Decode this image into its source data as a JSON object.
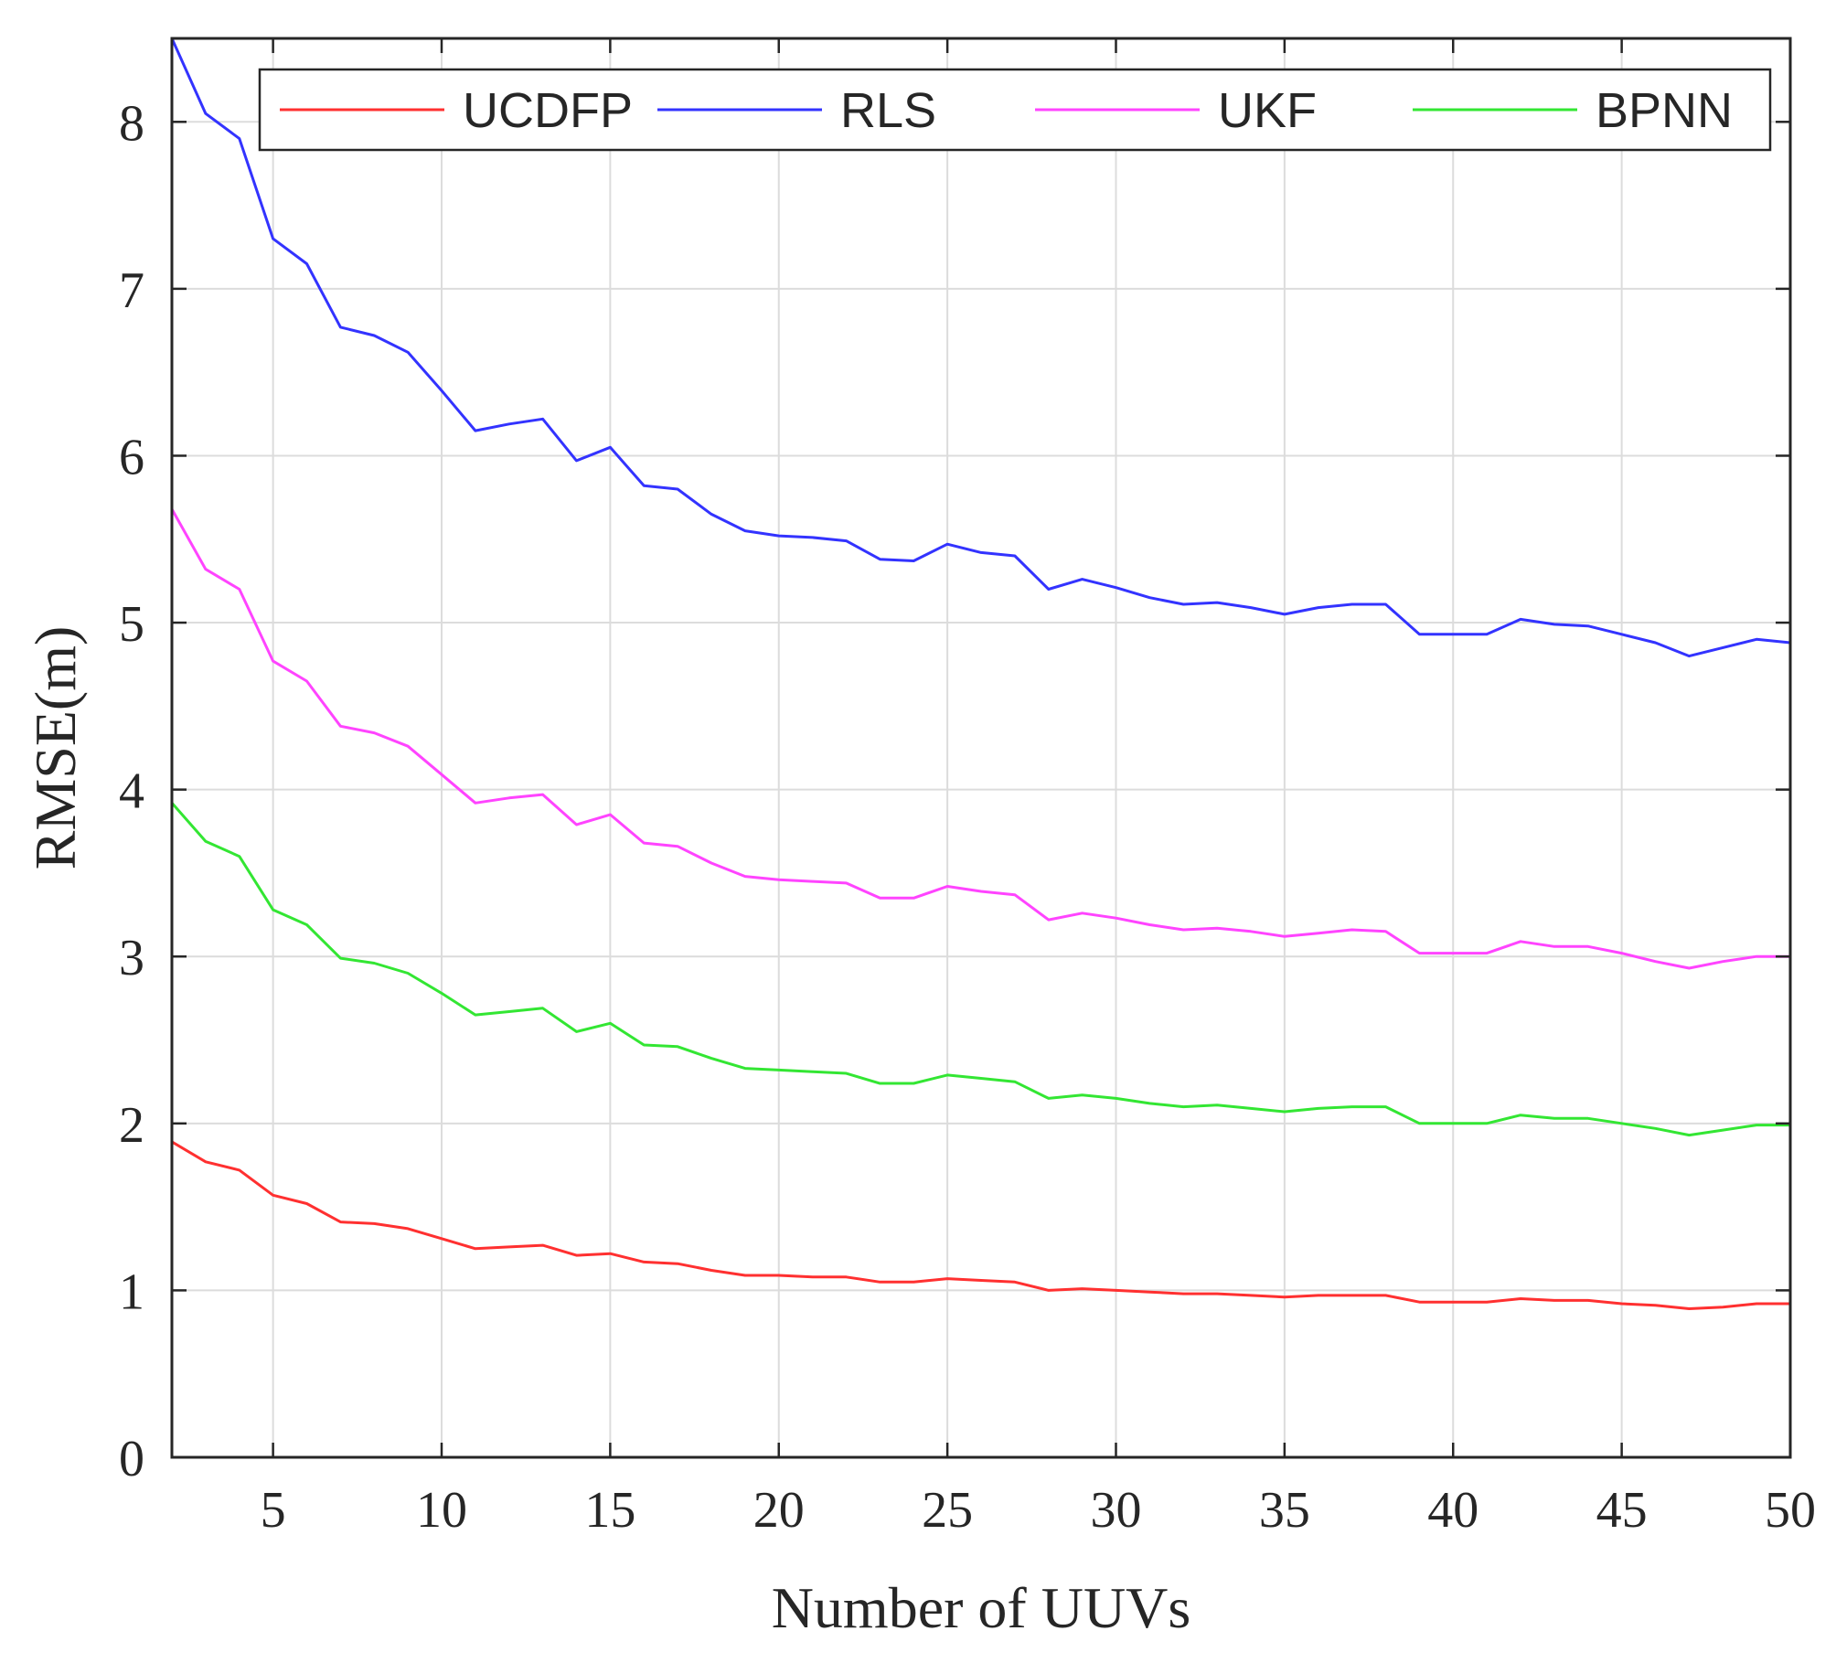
{
  "chart_data": {
    "type": "line",
    "title": "",
    "xlabel": "Number of UUVs",
    "ylabel": "RMSE(m)",
    "xlim": [
      2,
      50
    ],
    "ylim": [
      0,
      8.5
    ],
    "xticks": [
      5,
      10,
      15,
      20,
      25,
      30,
      35,
      40,
      45,
      50
    ],
    "yticks": [
      0,
      1,
      2,
      3,
      4,
      5,
      6,
      7,
      8
    ],
    "grid": true,
    "legend_position": "top",
    "x": [
      2,
      3,
      4,
      5,
      6,
      7,
      8,
      9,
      10,
      11,
      12,
      13,
      14,
      15,
      16,
      17,
      18,
      19,
      20,
      21,
      22,
      23,
      24,
      25,
      26,
      27,
      28,
      29,
      30,
      31,
      32,
      33,
      34,
      35,
      36,
      37,
      38,
      39,
      40,
      41,
      42,
      43,
      44,
      45,
      46,
      47,
      48,
      49,
      50
    ],
    "series": [
      {
        "name": "UCDFP",
        "color": "#ff3030",
        "values": [
          1.89,
          1.77,
          1.72,
          1.57,
          1.52,
          1.41,
          1.4,
          1.37,
          1.31,
          1.25,
          1.26,
          1.27,
          1.21,
          1.22,
          1.17,
          1.16,
          1.12,
          1.09,
          1.09,
          1.08,
          1.08,
          1.05,
          1.05,
          1.07,
          1.06,
          1.05,
          1.0,
          1.01,
          1.0,
          0.99,
          0.98,
          0.98,
          0.97,
          0.96,
          0.97,
          0.97,
          0.97,
          0.93,
          0.93,
          0.93,
          0.95,
          0.94,
          0.94,
          0.92,
          0.91,
          0.89,
          0.9,
          0.92,
          0.92
        ]
      },
      {
        "name": "RLS",
        "color": "#3333ff",
        "values": [
          8.5,
          8.05,
          7.9,
          7.3,
          7.15,
          6.77,
          6.72,
          6.62,
          6.39,
          6.15,
          6.19,
          6.22,
          5.97,
          6.05,
          5.82,
          5.8,
          5.65,
          5.55,
          5.52,
          5.51,
          5.49,
          5.38,
          5.37,
          5.47,
          5.42,
          5.4,
          5.2,
          5.26,
          5.21,
          5.15,
          5.11,
          5.12,
          5.09,
          5.05,
          5.09,
          5.11,
          5.11,
          4.93,
          4.93,
          4.93,
          5.02,
          4.99,
          4.98,
          4.93,
          4.88,
          4.8,
          4.85,
          4.9,
          4.88
        ]
      },
      {
        "name": "UKF",
        "color": "#ff44ff",
        "values": [
          5.68,
          5.32,
          5.2,
          4.77,
          4.65,
          4.38,
          4.34,
          4.26,
          4.09,
          3.92,
          3.95,
          3.97,
          3.79,
          3.85,
          3.68,
          3.66,
          3.56,
          3.48,
          3.46,
          3.45,
          3.44,
          3.35,
          3.35,
          3.42,
          3.39,
          3.37,
          3.22,
          3.26,
          3.23,
          3.19,
          3.16,
          3.17,
          3.15,
          3.12,
          3.14,
          3.16,
          3.15,
          3.02,
          3.02,
          3.02,
          3.09,
          3.06,
          3.06,
          3.02,
          2.97,
          2.93,
          2.97,
          3.0,
          3.0
        ]
      },
      {
        "name": "BPNN",
        "color": "#33e633",
        "values": [
          3.92,
          3.69,
          3.6,
          3.28,
          3.19,
          2.99,
          2.96,
          2.9,
          2.78,
          2.65,
          2.67,
          2.69,
          2.55,
          2.6,
          2.47,
          2.46,
          2.39,
          2.33,
          2.32,
          2.31,
          2.3,
          2.24,
          2.24,
          2.29,
          2.27,
          2.25,
          2.15,
          2.17,
          2.15,
          2.12,
          2.1,
          2.11,
          2.09,
          2.07,
          2.09,
          2.1,
          2.1,
          2.0,
          2.0,
          2.0,
          2.05,
          2.03,
          2.03,
          2.0,
          1.97,
          1.93,
          1.96,
          1.99,
          1.99
        ]
      }
    ]
  }
}
